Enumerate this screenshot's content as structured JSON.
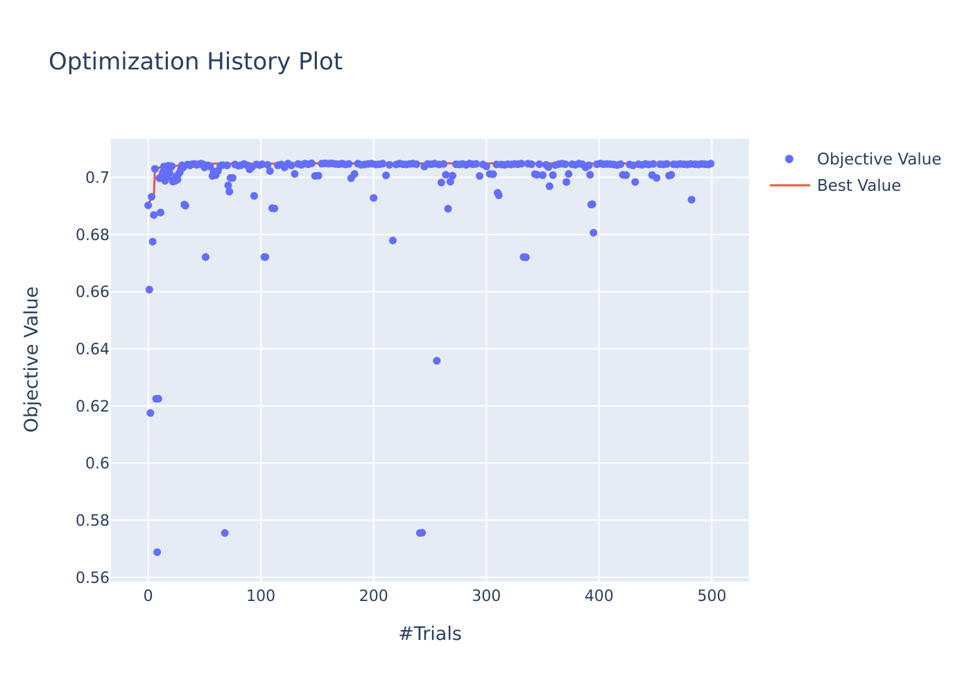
{
  "chart_data": {
    "type": "scatter",
    "title": "Optimization History Plot",
    "xlabel": "#Trials",
    "ylabel": "Objective Value",
    "xlim": [
      -33,
      533
    ],
    "ylim": [
      0.5585,
      0.7135
    ],
    "xticks": [
      0,
      100,
      200,
      300,
      400,
      500
    ],
    "xtick_labels": [
      "0",
      "100",
      "200",
      "300",
      "400",
      "500"
    ],
    "yticks": [
      0.56,
      0.58,
      0.6,
      0.62,
      0.64,
      0.66,
      0.68,
      0.7
    ],
    "ytick_labels": [
      "0.56",
      "0.58",
      "0.6",
      "0.62",
      "0.64",
      "0.66",
      "0.68",
      "0.7"
    ],
    "grid": true,
    "legend_position": "top-right",
    "colors": {
      "objective": "#636efa",
      "best": "#ef553b",
      "plot_bg": "#e5ecf6",
      "grid": "#ffffff"
    },
    "series": [
      {
        "name": "Objective Value",
        "kind": "markers",
        "points": [
          [
            0,
            0.6902
          ],
          [
            1,
            0.6607
          ],
          [
            2,
            0.6175
          ],
          [
            3,
            0.6932
          ],
          [
            4,
            0.6775
          ],
          [
            5,
            0.6868
          ],
          [
            6,
            0.703
          ],
          [
            7,
            0.6225
          ],
          [
            8,
            0.5688
          ],
          [
            9,
            0.6225
          ],
          [
            10,
            0.6997
          ],
          [
            11,
            0.6877
          ],
          [
            12,
            0.7005
          ],
          [
            13,
            0.7018
          ],
          [
            14,
            0.7038
          ],
          [
            15,
            0.6988
          ],
          [
            16,
            0.7025
          ],
          [
            17,
            0.7002
          ],
          [
            18,
            0.7041
          ],
          [
            19,
            0.7015
          ],
          [
            20,
            0.7035
          ],
          [
            21,
            0.7039
          ],
          [
            22,
            0.6985
          ],
          [
            23,
            0.6992
          ],
          [
            24,
            0.6988
          ],
          [
            25,
            0.7004
          ],
          [
            26,
            0.6992
          ],
          [
            27,
            0.7012
          ],
          [
            28,
            0.7018
          ],
          [
            29,
            0.7028
          ],
          [
            30,
            0.7042
          ],
          [
            31,
            0.7035
          ],
          [
            32,
            0.6905
          ],
          [
            33,
            0.6901
          ],
          [
            35,
            0.7045
          ],
          [
            37,
            0.7042
          ],
          [
            39,
            0.7046
          ],
          [
            41,
            0.7047
          ],
          [
            43,
            0.7044
          ],
          [
            45,
            0.7046
          ],
          [
            47,
            0.7048
          ],
          [
            49,
            0.7045
          ],
          [
            50,
            0.7035
          ],
          [
            51,
            0.6721
          ],
          [
            53,
            0.7042
          ],
          [
            55,
            0.7038
          ],
          [
            57,
            0.7005
          ],
          [
            58,
            0.7021
          ],
          [
            60,
            0.7008
          ],
          [
            62,
            0.7023
          ],
          [
            64,
            0.7041
          ],
          [
            66,
            0.7043
          ],
          [
            68,
            0.5755
          ],
          [
            70,
            0.7042
          ],
          [
            71,
            0.6972
          ],
          [
            72,
            0.695
          ],
          [
            73,
            0.6998
          ],
          [
            75,
            0.6998
          ],
          [
            77,
            0.7045
          ],
          [
            80,
            0.7041
          ],
          [
            82,
            0.7042
          ],
          [
            85,
            0.7047
          ],
          [
            88,
            0.7042
          ],
          [
            90,
            0.7028
          ],
          [
            92,
            0.7036
          ],
          [
            94,
            0.6935
          ],
          [
            96,
            0.7045
          ],
          [
            99,
            0.7043
          ],
          [
            101,
            0.7046
          ],
          [
            103,
            0.6721
          ],
          [
            104,
            0.6721
          ],
          [
            106,
            0.7044
          ],
          [
            108,
            0.7022
          ],
          [
            110,
            0.6892
          ],
          [
            112,
            0.6891
          ],
          [
            115,
            0.7042
          ],
          [
            118,
            0.7045
          ],
          [
            121,
            0.7035
          ],
          [
            124,
            0.7048
          ],
          [
            127,
            0.7042
          ],
          [
            130,
            0.7012
          ],
          [
            133,
            0.7047
          ],
          [
            136,
            0.7044
          ],
          [
            139,
            0.7048
          ],
          [
            142,
            0.7046
          ],
          [
            145,
            0.7049
          ],
          [
            148,
            0.7005
          ],
          [
            151,
            0.7006
          ],
          [
            154,
            0.7048
          ],
          [
            157,
            0.7049
          ],
          [
            160,
            0.7048
          ],
          [
            163,
            0.7049
          ],
          [
            166,
            0.7047
          ],
          [
            169,
            0.7046
          ],
          [
            172,
            0.7048
          ],
          [
            175,
            0.7045
          ],
          [
            178,
            0.7047
          ],
          [
            180,
            0.6997
          ],
          [
            183,
            0.7012
          ],
          [
            186,
            0.7048
          ],
          [
            189,
            0.7044
          ],
          [
            192,
            0.7045
          ],
          [
            195,
            0.7047
          ],
          [
            198,
            0.7048
          ],
          [
            200,
            0.6928
          ],
          [
            202,
            0.7045
          ],
          [
            205,
            0.7046
          ],
          [
            208,
            0.7048
          ],
          [
            211,
            0.7007
          ],
          [
            214,
            0.7044
          ],
          [
            217,
            0.6779
          ],
          [
            220,
            0.7045
          ],
          [
            223,
            0.7048
          ],
          [
            226,
            0.7046
          ],
          [
            229,
            0.7045
          ],
          [
            232,
            0.7047
          ],
          [
            235,
            0.7048
          ],
          [
            238,
            0.7046
          ],
          [
            241,
            0.5755
          ],
          [
            243,
            0.5756
          ],
          [
            245,
            0.7038
          ],
          [
            248,
            0.7047
          ],
          [
            251,
            0.7046
          ],
          [
            254,
            0.7048
          ],
          [
            256,
            0.6358
          ],
          [
            258,
            0.7045
          ],
          [
            260,
            0.6982
          ],
          [
            262,
            0.7047
          ],
          [
            264,
            0.7009
          ],
          [
            266,
            0.689
          ],
          [
            268,
            0.6985
          ],
          [
            270,
            0.7006
          ],
          [
            273,
            0.7046
          ],
          [
            276,
            0.7045
          ],
          [
            279,
            0.7047
          ],
          [
            282,
            0.7044
          ],
          [
            285,
            0.7048
          ],
          [
            288,
            0.7046
          ],
          [
            291,
            0.7047
          ],
          [
            294,
            0.7005
          ],
          [
            297,
            0.7045
          ],
          [
            300,
            0.7038
          ],
          [
            303,
            0.7012
          ],
          [
            306,
            0.7011
          ],
          [
            309,
            0.7045
          ],
          [
            310,
            0.6946
          ],
          [
            311,
            0.6937
          ],
          [
            313,
            0.7045
          ],
          [
            316,
            0.7044
          ],
          [
            319,
            0.7046
          ],
          [
            322,
            0.7045
          ],
          [
            325,
            0.7047
          ],
          [
            328,
            0.7046
          ],
          [
            331,
            0.7048
          ],
          [
            333,
            0.6721
          ],
          [
            335,
            0.672
          ],
          [
            337,
            0.7048
          ],
          [
            340,
            0.7046
          ],
          [
            343,
            0.7011
          ],
          [
            345,
            0.7009
          ],
          [
            347,
            0.7046
          ],
          [
            350,
            0.7008
          ],
          [
            353,
            0.7044
          ],
          [
            355,
            0.7036
          ],
          [
            356,
            0.6969
          ],
          [
            359,
            0.7008
          ],
          [
            361,
            0.7043
          ],
          [
            364,
            0.7046
          ],
          [
            367,
            0.7048
          ],
          [
            370,
            0.7046
          ],
          [
            371,
            0.6984
          ],
          [
            373,
            0.7012
          ],
          [
            376,
            0.7046
          ],
          [
            379,
            0.7044
          ],
          [
            382,
            0.7048
          ],
          [
            385,
            0.7046
          ],
          [
            388,
            0.7035
          ],
          [
            391,
            0.7042
          ],
          [
            392,
            0.7009
          ],
          [
            393,
            0.6905
          ],
          [
            394,
            0.6906
          ],
          [
            395,
            0.6806
          ],
          [
            398,
            0.7046
          ],
          [
            401,
            0.7048
          ],
          [
            404,
            0.7046
          ],
          [
            407,
            0.7047
          ],
          [
            410,
            0.7046
          ],
          [
            413,
            0.7045
          ],
          [
            416,
            0.7043
          ],
          [
            419,
            0.7046
          ],
          [
            421,
            0.7009
          ],
          [
            424,
            0.7008
          ],
          [
            427,
            0.7045
          ],
          [
            430,
            0.7042
          ],
          [
            432,
            0.6984
          ],
          [
            435,
            0.7046
          ],
          [
            438,
            0.7044
          ],
          [
            441,
            0.7047
          ],
          [
            444,
            0.7045
          ],
          [
            447,
            0.7008
          ],
          [
            448,
            0.7047
          ],
          [
            451,
            0.6998
          ],
          [
            454,
            0.7046
          ],
          [
            457,
            0.7045
          ],
          [
            460,
            0.7047
          ],
          [
            462,
            0.7006
          ],
          [
            464,
            0.7009
          ],
          [
            466,
            0.7046
          ],
          [
            469,
            0.7045
          ],
          [
            472,
            0.7047
          ],
          [
            475,
            0.7046
          ],
          [
            478,
            0.7045
          ],
          [
            481,
            0.7047
          ],
          [
            482,
            0.6922
          ],
          [
            485,
            0.7046
          ],
          [
            488,
            0.7045
          ],
          [
            491,
            0.7047
          ],
          [
            494,
            0.7046
          ],
          [
            497,
            0.7045
          ],
          [
            499,
            0.7048
          ]
        ]
      },
      {
        "name": "Best Value",
        "kind": "line",
        "points": [
          [
            0,
            0.6902
          ],
          [
            3,
            0.6932
          ],
          [
            5,
            0.6932
          ],
          [
            6,
            0.703
          ],
          [
            14,
            0.7038
          ],
          [
            30,
            0.7042
          ],
          [
            47,
            0.7048
          ],
          [
            124,
            0.7048
          ],
          [
            145,
            0.7049
          ],
          [
            499,
            0.7049
          ]
        ]
      }
    ]
  }
}
